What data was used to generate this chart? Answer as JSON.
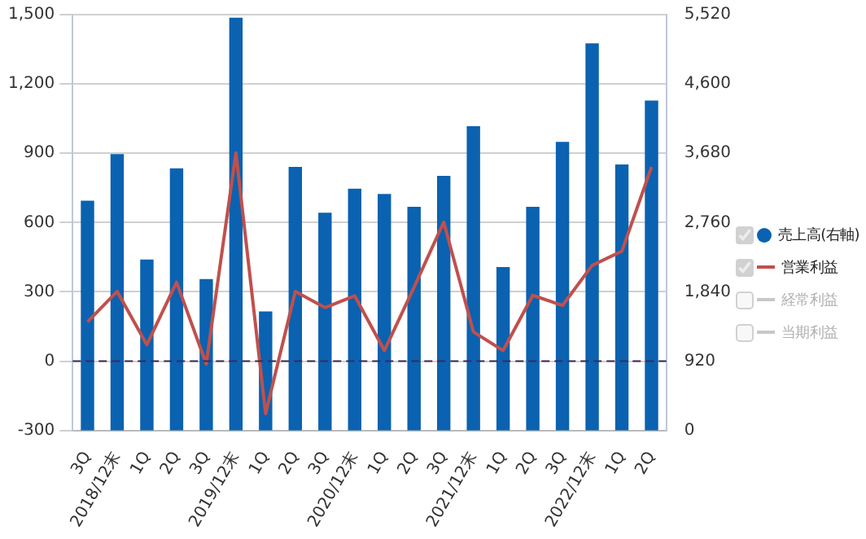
{
  "chart_data": {
    "type": "bar",
    "categories": [
      "3Q",
      "2018/12末",
      "1Q",
      "2Q",
      "3Q",
      "2019/12末",
      "1Q",
      "2Q",
      "3Q",
      "2020/12末",
      "1Q",
      "2Q",
      "3Q",
      "2021/12末",
      "1Q",
      "2Q",
      "3Q",
      "2022/12末",
      "1Q",
      "2Q"
    ],
    "series": [
      {
        "name": "売上高(右軸)",
        "axis": "y2",
        "color": "#0a62b0",
        "values": [
          3050,
          3670,
          2270,
          3480,
          2010,
          5480,
          1580,
          3500,
          2890,
          3210,
          3140,
          2970,
          3380,
          4040,
          2170,
          2970,
          3830,
          5140,
          3530,
          4380
        ]
      },
      {
        "name": "営業利益",
        "type": "line",
        "color": "#c0504d",
        "values": [
          170,
          302,
          71,
          342,
          -12,
          902,
          -227,
          302,
          232,
          283,
          46,
          320,
          602,
          127,
          46,
          285,
          241,
          415,
          476,
          841
        ]
      },
      {
        "name": "経常利益",
        "type": "line",
        "color": "#c8c8c8",
        "values": [
          null,
          null,
          null,
          null,
          null,
          null,
          null,
          null,
          null,
          null,
          null,
          null,
          null,
          null,
          null,
          null,
          null,
          null,
          null,
          null
        ]
      },
      {
        "name": "当期利益",
        "type": "line",
        "color": "#c8c8c8",
        "values": [
          null,
          null,
          null,
          null,
          null,
          null,
          null,
          null,
          null,
          null,
          null,
          null,
          null,
          null,
          null,
          null,
          null,
          null,
          null,
          null
        ]
      }
    ],
    "ylim": [
      -300,
      1500
    ],
    "yticks": [
      -300,
      0,
      300,
      600,
      900,
      {
        "value": 1200,
        "label": "1,200"
      },
      {
        "value": 1500,
        "label": "1,500"
      }
    ],
    "y2lim": [
      0,
      5520
    ],
    "y2ticks": [
      0,
      920,
      {
        "value": 1840,
        "label": "1,840"
      },
      {
        "value": 2760,
        "label": "2,760"
      },
      {
        "value": 3680,
        "label": "3,680"
      },
      {
        "value": 4600,
        "label": "4,600"
      },
      {
        "value": 5520,
        "label": "5,520"
      }
    ],
    "ref_lines": [
      {
        "axis": "y",
        "value": 0,
        "color": "#3c2a5a",
        "line_style": "dashed"
      }
    ],
    "grid": "y",
    "legend": "right",
    "marker": "none",
    "line_style": "solid"
  }
}
